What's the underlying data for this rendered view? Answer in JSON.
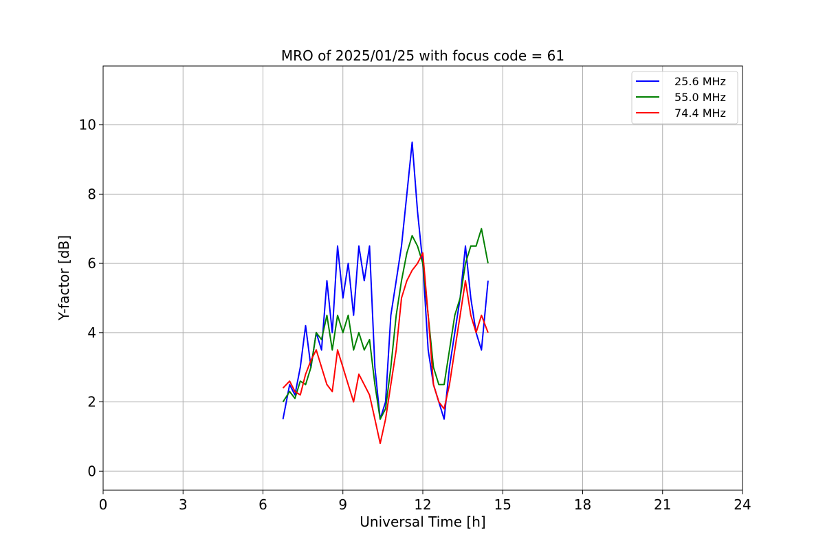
{
  "chart_data": {
    "type": "line",
    "title": "MRO of 2025/01/25 with focus code = 61",
    "xlabel": "Universal Time [h]",
    "ylabel": "Y-factor [dB]",
    "xlim": [
      0,
      24
    ],
    "ylim": [
      -0.55,
      11.7
    ],
    "xticks": [
      0,
      3,
      6,
      9,
      12,
      15,
      18,
      21,
      24
    ],
    "yticks": [
      0,
      2,
      4,
      6,
      8,
      10
    ],
    "grid": true,
    "legend_position": "top-right",
    "series": [
      {
        "name": "25.6 MHz",
        "color": "#0000ff",
        "x": [
          6.75,
          7.0,
          7.2,
          7.4,
          7.6,
          7.8,
          8.0,
          8.2,
          8.4,
          8.6,
          8.8,
          9.0,
          9.2,
          9.4,
          9.6,
          9.8,
          10.0,
          10.2,
          10.4,
          10.6,
          10.8,
          11.0,
          11.2,
          11.4,
          11.6,
          11.8,
          12.0,
          12.2,
          12.4,
          12.6,
          12.8,
          13.0,
          13.2,
          13.4,
          13.6,
          13.8,
          14.0,
          14.2,
          14.45
        ],
        "y": [
          1.5,
          2.5,
          2.2,
          3.0,
          4.2,
          3.0,
          4.0,
          3.5,
          5.5,
          4.0,
          6.5,
          5.0,
          6.0,
          4.5,
          6.5,
          5.5,
          6.5,
          3.0,
          1.5,
          2.0,
          4.5,
          5.5,
          6.5,
          8.0,
          9.5,
          7.5,
          6.0,
          3.5,
          2.5,
          2.0,
          1.5,
          3.0,
          4.0,
          5.0,
          6.5,
          5.0,
          4.0,
          3.5,
          5.5
        ]
      },
      {
        "name": "55.0 MHz",
        "color": "#008000",
        "x": [
          6.75,
          7.0,
          7.2,
          7.4,
          7.6,
          7.8,
          8.0,
          8.2,
          8.4,
          8.6,
          8.8,
          9.0,
          9.2,
          9.4,
          9.6,
          9.8,
          10.0,
          10.2,
          10.4,
          10.6,
          10.8,
          11.0,
          11.2,
          11.4,
          11.6,
          11.8,
          12.0,
          12.2,
          12.4,
          12.6,
          12.8,
          13.0,
          13.2,
          13.4,
          13.6,
          13.8,
          14.0,
          14.2,
          14.45
        ],
        "y": [
          2.0,
          2.3,
          2.1,
          2.6,
          2.5,
          3.0,
          4.0,
          3.8,
          4.5,
          3.5,
          4.5,
          4.0,
          4.5,
          3.5,
          4.0,
          3.5,
          3.8,
          2.5,
          1.5,
          1.8,
          3.0,
          4.5,
          5.5,
          6.3,
          6.8,
          6.5,
          6.0,
          4.5,
          3.0,
          2.5,
          2.5,
          3.5,
          4.5,
          5.0,
          6.0,
          6.5,
          6.5,
          7.0,
          6.0
        ]
      },
      {
        "name": "74.4 MHz",
        "color": "#ff0000",
        "x": [
          6.75,
          7.0,
          7.2,
          7.4,
          7.6,
          7.8,
          8.0,
          8.2,
          8.4,
          8.6,
          8.8,
          9.0,
          9.2,
          9.4,
          9.6,
          9.8,
          10.0,
          10.2,
          10.4,
          10.6,
          10.8,
          11.0,
          11.2,
          11.4,
          11.6,
          11.8,
          12.0,
          12.2,
          12.4,
          12.6,
          12.8,
          13.0,
          13.2,
          13.4,
          13.6,
          13.8,
          14.0,
          14.2,
          14.45
        ],
        "y": [
          2.4,
          2.6,
          2.3,
          2.2,
          2.8,
          3.2,
          3.5,
          3.0,
          2.5,
          2.3,
          3.5,
          3.0,
          2.5,
          2.0,
          2.8,
          2.5,
          2.2,
          1.5,
          0.8,
          1.5,
          2.5,
          3.5,
          5.0,
          5.5,
          5.8,
          6.0,
          6.3,
          4.5,
          2.5,
          2.0,
          1.8,
          2.5,
          3.5,
          4.5,
          5.5,
          4.5,
          4.0,
          4.5,
          4.0
        ]
      }
    ]
  }
}
